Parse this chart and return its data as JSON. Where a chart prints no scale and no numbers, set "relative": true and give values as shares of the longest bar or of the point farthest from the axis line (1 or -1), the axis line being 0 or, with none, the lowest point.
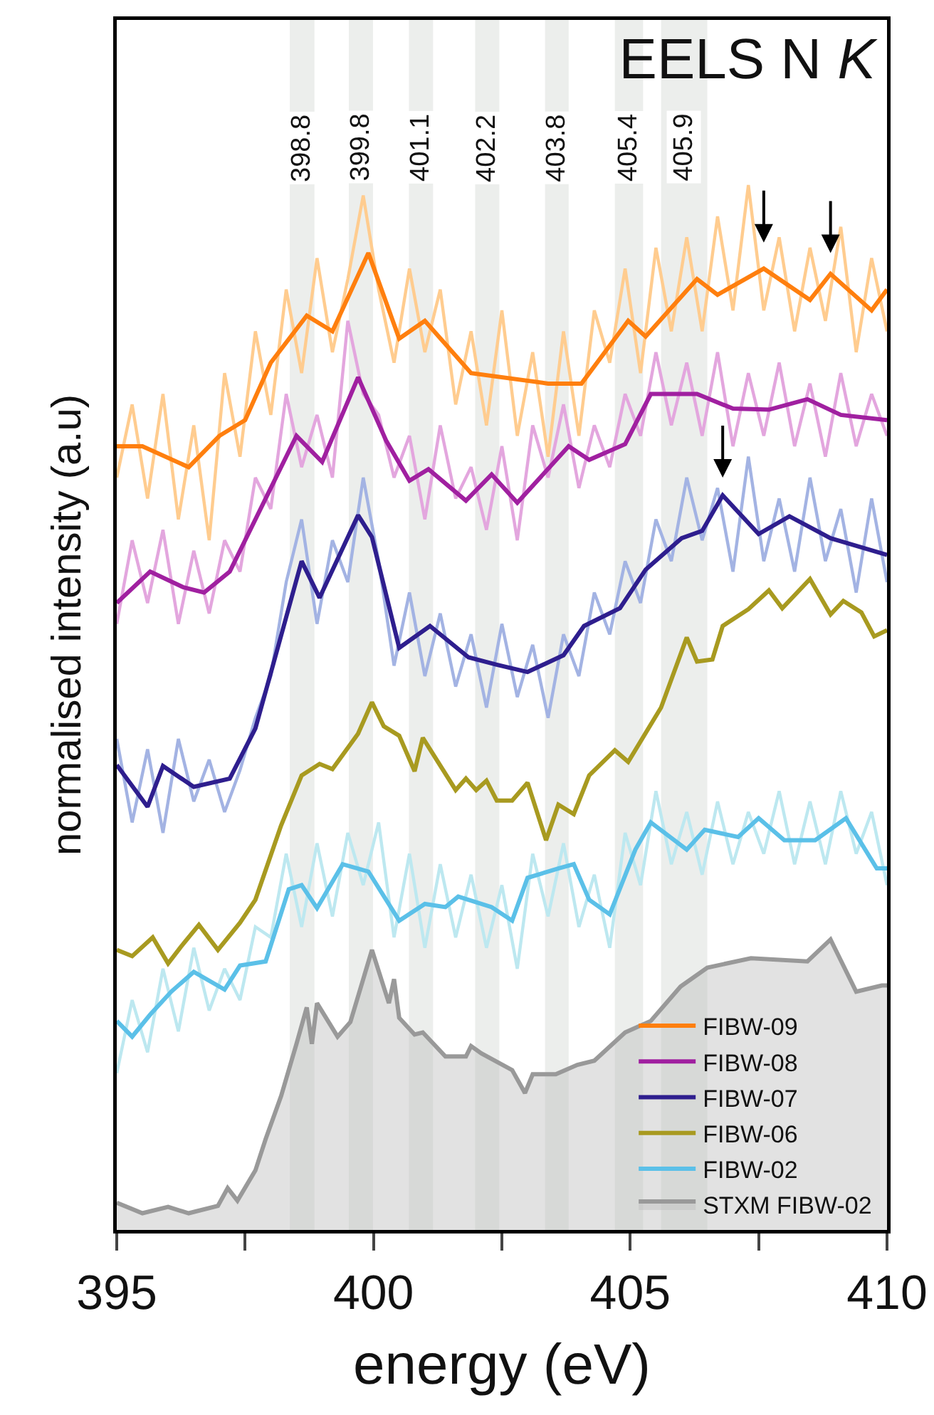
{
  "chart_data": {
    "type": "line",
    "title": "EELS N K",
    "xlabel": "energy (eV)",
    "ylabel": "normalised intensity (a.u)",
    "relative": true,
    "xlim": [
      395,
      410
    ],
    "xticks": [
      395,
      {
        "value": 397.5,
        "label": null
      },
      400,
      {
        "value": 402.5,
        "label": null
      },
      405,
      {
        "value": 407.5,
        "label": null
      },
      410
    ],
    "legend": "bottom right",
    "grid": false,
    "marker": "none",
    "line_style": "solid",
    "bands": [
      {
        "axis": "x",
        "from": 398.37,
        "to": 398.85,
        "label": "398.8",
        "color": "#eceeec"
      },
      {
        "axis": "x",
        "from": 399.52,
        "to": 399.99,
        "label": "399.8",
        "color": "#eceeec"
      },
      {
        "axis": "x",
        "from": 400.69,
        "to": 401.16,
        "label": "401.1",
        "color": "#eceeec"
      },
      {
        "axis": "x",
        "from": 401.98,
        "to": 402.45,
        "label": "402.2",
        "color": "#eceeec"
      },
      {
        "axis": "x",
        "from": 403.34,
        "to": 403.8,
        "label": "403.8",
        "color": "#eceeec"
      },
      {
        "axis": "x",
        "from": 404.7,
        "to": 405.25,
        "label": "405.4",
        "color": "#eceeec"
      },
      {
        "axis": "x",
        "from": 405.6,
        "to": 406.5,
        "label": "405.9",
        "color": "#eceeec"
      }
    ],
    "series": [
      {
        "name": "STXM FIBW-02",
        "type": "area",
        "color": "#999999",
        "x": [
          395,
          395.5,
          396,
          396.4,
          396.97,
          397.16,
          397.35,
          397.7,
          397.9,
          398.2,
          398.5,
          398.7,
          398.8,
          398.9,
          399.3,
          399.55,
          399.97,
          400.3,
          400.4,
          400.5,
          400.8,
          400.96,
          401.4,
          401.8,
          401.9,
          402.1,
          402.7,
          402.95,
          403.1,
          403.55,
          403.97,
          404.3,
          404.9,
          405.4,
          405.98,
          406.5,
          407.35,
          408.45,
          408.9,
          409.4,
          409.9,
          410
        ],
        "values": [
          0.026,
          0.016,
          0.022,
          0.016,
          0.023,
          0.04,
          0.028,
          0.057,
          0.087,
          0.128,
          0.178,
          0.213,
          0.178,
          0.217,
          0.185,
          0.199,
          0.268,
          0.217,
          0.24,
          0.203,
          0.187,
          0.189,
          0.166,
          0.166,
          0.176,
          0.169,
          0.153,
          0.131,
          0.149,
          0.149,
          0.158,
          0.162,
          0.189,
          0.2,
          0.233,
          0.251,
          0.26,
          0.257,
          0.278,
          0.228,
          0.234,
          0.234
        ]
      },
      {
        "type": "line",
        "color": "#ffcc8f",
        "x": [
          395.0,
          395.3,
          395.6,
          395.9,
          396.2,
          396.5,
          396.8,
          397.1,
          397.4,
          397.7,
          398.0,
          398.3,
          398.6,
          398.9,
          399.2,
          399.5,
          399.8,
          400.1,
          400.4,
          400.7,
          401.0,
          401.3,
          401.6,
          401.9,
          402.2,
          402.5,
          402.8,
          403.1,
          403.4,
          403.7,
          404.0,
          404.3,
          404.6,
          404.9,
          405.2,
          405.5,
          405.8,
          406.1,
          406.4,
          406.7,
          407.0,
          407.3,
          407.6,
          407.9,
          408.2,
          408.5,
          408.8,
          409.1,
          409.4,
          409.7,
          410.0
        ],
        "values": [
          0.72,
          0.79,
          0.7,
          0.8,
          0.68,
          0.77,
          0.66,
          0.82,
          0.74,
          0.86,
          0.78,
          0.9,
          0.82,
          0.93,
          0.84,
          0.91,
          0.99,
          0.9,
          0.83,
          0.92,
          0.84,
          0.9,
          0.79,
          0.86,
          0.77,
          0.88,
          0.76,
          0.84,
          0.74,
          0.86,
          0.76,
          0.88,
          0.83,
          0.92,
          0.82,
          0.94,
          0.86,
          0.95,
          0.86,
          0.97,
          0.88,
          1.0,
          0.88,
          0.95,
          0.86,
          0.94,
          0.87,
          0.96,
          0.84,
          0.93,
          0.86
        ]
      },
      {
        "type": "line",
        "color": "#e3a6de",
        "x": [
          395.0,
          395.3,
          395.6,
          395.9,
          396.2,
          396.5,
          396.8,
          397.1,
          397.4,
          397.7,
          398.0,
          398.3,
          398.6,
          398.9,
          399.2,
          399.5,
          399.8,
          400.1,
          400.4,
          400.7,
          401.0,
          401.3,
          401.6,
          401.9,
          402.2,
          402.5,
          402.8,
          403.1,
          403.4,
          403.7,
          404.0,
          404.3,
          404.6,
          404.9,
          405.2,
          405.5,
          405.8,
          406.1,
          406.4,
          406.7,
          407.0,
          407.3,
          407.6,
          407.9,
          408.2,
          408.5,
          408.8,
          409.1,
          409.4,
          409.7,
          410.0
        ],
        "values": [
          0.58,
          0.66,
          0.6,
          0.67,
          0.58,
          0.65,
          0.59,
          0.66,
          0.63,
          0.72,
          0.69,
          0.8,
          0.73,
          0.78,
          0.72,
          0.87,
          0.8,
          0.78,
          0.72,
          0.76,
          0.68,
          0.77,
          0.7,
          0.73,
          0.67,
          0.75,
          0.66,
          0.77,
          0.72,
          0.79,
          0.71,
          0.77,
          0.73,
          0.8,
          0.76,
          0.84,
          0.77,
          0.83,
          0.76,
          0.84,
          0.75,
          0.82,
          0.76,
          0.83,
          0.75,
          0.81,
          0.74,
          0.82,
          0.75,
          0.8,
          0.76
        ]
      },
      {
        "type": "line",
        "color": "#a3b3e3",
        "x": [
          395.0,
          395.3,
          395.6,
          395.9,
          396.2,
          396.5,
          396.8,
          397.1,
          397.4,
          397.7,
          398.0,
          398.3,
          398.6,
          398.9,
          399.2,
          399.5,
          399.8,
          400.1,
          400.4,
          400.7,
          401.0,
          401.3,
          401.6,
          401.9,
          402.2,
          402.5,
          402.8,
          403.1,
          403.4,
          403.7,
          404.0,
          404.3,
          404.6,
          404.9,
          405.2,
          405.5,
          405.8,
          406.1,
          406.4,
          406.7,
          407.0,
          407.3,
          407.6,
          407.9,
          408.2,
          408.5,
          408.8,
          409.1,
          409.4,
          409.7,
          410.0
        ],
        "values": [
          0.47,
          0.39,
          0.46,
          0.38,
          0.47,
          0.41,
          0.45,
          0.4,
          0.44,
          0.49,
          0.53,
          0.62,
          0.68,
          0.58,
          0.66,
          0.62,
          0.72,
          0.64,
          0.54,
          0.61,
          0.53,
          0.59,
          0.52,
          0.57,
          0.5,
          0.58,
          0.51,
          0.56,
          0.49,
          0.57,
          0.53,
          0.61,
          0.57,
          0.64,
          0.6,
          0.68,
          0.64,
          0.72,
          0.66,
          0.71,
          0.63,
          0.74,
          0.64,
          0.7,
          0.63,
          0.72,
          0.64,
          0.69,
          0.61,
          0.7,
          0.62
        ]
      },
      {
        "type": "line",
        "color": "#bde8f0",
        "x": [
          395.0,
          395.3,
          395.6,
          395.9,
          396.2,
          396.5,
          396.8,
          397.1,
          397.4,
          397.7,
          398.0,
          398.3,
          398.6,
          398.9,
          399.2,
          399.5,
          399.8,
          400.1,
          400.4,
          400.7,
          401.0,
          401.3,
          401.6,
          401.9,
          402.2,
          402.5,
          402.8,
          403.1,
          403.4,
          403.7,
          404.0,
          404.3,
          404.6,
          404.9,
          405.2,
          405.5,
          405.8,
          406.1,
          406.4,
          406.7,
          407.0,
          407.3,
          407.6,
          407.9,
          408.2,
          408.5,
          408.8,
          409.1,
          409.4,
          409.7,
          410.0
        ],
        "values": [
          0.15,
          0.22,
          0.17,
          0.25,
          0.19,
          0.27,
          0.21,
          0.25,
          0.22,
          0.29,
          0.28,
          0.36,
          0.29,
          0.37,
          0.3,
          0.38,
          0.33,
          0.39,
          0.28,
          0.36,
          0.27,
          0.35,
          0.28,
          0.34,
          0.27,
          0.33,
          0.25,
          0.36,
          0.3,
          0.37,
          0.29,
          0.34,
          0.27,
          0.38,
          0.33,
          0.42,
          0.35,
          0.4,
          0.34,
          0.41,
          0.35,
          0.4,
          0.36,
          0.42,
          0.35,
          0.41,
          0.35,
          0.42,
          0.36,
          0.4,
          0.33
        ]
      },
      {
        "name": "FIBW-02",
        "color": "#5bc0e8",
        "x": [
          395,
          395.3,
          395.65,
          396.06,
          396.5,
          397.1,
          397.4,
          397.9,
          398.35,
          398.6,
          398.9,
          399.4,
          399.9,
          400.5,
          401.0,
          401.4,
          401.65,
          402.3,
          402.7,
          403.0,
          403.6,
          403.9,
          404.2,
          404.6,
          405.1,
          405.4,
          406.1,
          406.45,
          407.1,
          407.5,
          408.0,
          408.6,
          409.2,
          409.8,
          410
        ],
        "values": [
          0.2,
          0.185,
          0.206,
          0.228,
          0.247,
          0.23,
          0.253,
          0.257,
          0.326,
          0.33,
          0.308,
          0.35,
          0.343,
          0.296,
          0.312,
          0.309,
          0.319,
          0.309,
          0.296,
          0.337,
          0.346,
          0.35,
          0.316,
          0.302,
          0.364,
          0.39,
          0.364,
          0.383,
          0.376,
          0.394,
          0.373,
          0.373,
          0.394,
          0.346,
          0.346
        ]
      },
      {
        "name": "FIBW-06",
        "color": "#a89a20",
        "x": [
          395,
          395.3,
          395.7,
          396.0,
          396.25,
          396.6,
          396.97,
          397.4,
          397.7,
          398.2,
          398.6,
          398.95,
          399.2,
          399.7,
          399.97,
          400.2,
          400.5,
          400.8,
          400.96,
          401.6,
          401.8,
          402.0,
          402.2,
          402.4,
          402.7,
          403.0,
          403.36,
          403.6,
          403.9,
          404.2,
          404.7,
          404.96,
          405.6,
          406.1,
          406.3,
          406.6,
          406.8,
          407.3,
          407.7,
          407.96,
          408.5,
          408.9,
          409.15,
          409.5,
          409.75,
          410
        ],
        "values": [
          0.268,
          0.262,
          0.28,
          0.255,
          0.271,
          0.292,
          0.268,
          0.294,
          0.316,
          0.387,
          0.435,
          0.446,
          0.441,
          0.475,
          0.505,
          0.482,
          0.473,
          0.439,
          0.471,
          0.421,
          0.432,
          0.421,
          0.43,
          0.411,
          0.411,
          0.428,
          0.373,
          0.407,
          0.398,
          0.435,
          0.459,
          0.448,
          0.5,
          0.567,
          0.544,
          0.546,
          0.578,
          0.594,
          0.612,
          0.595,
          0.623,
          0.589,
          0.602,
          0.591,
          0.568,
          0.574
        ]
      },
      {
        "name": "FIBW-07",
        "color": "#2e1e8e",
        "x": [
          395,
          395.6,
          395.9,
          396.5,
          397.2,
          397.7,
          398.0,
          398.6,
          398.95,
          399.7,
          399.97,
          400.5,
          401.1,
          401.85,
          402.4,
          403.0,
          403.7,
          404.1,
          404.8,
          405.3,
          406.0,
          406.4,
          406.8,
          407.5,
          408.1,
          408.9,
          410
        ],
        "values": [
          0.445,
          0.405,
          0.444,
          0.424,
          0.432,
          0.48,
          0.533,
          0.64,
          0.605,
          0.684,
          0.663,
          0.557,
          0.578,
          0.548,
          0.541,
          0.534,
          0.55,
          0.578,
          0.595,
          0.632,
          0.662,
          0.669,
          0.703,
          0.666,
          0.683,
          0.662,
          0.646
        ]
      },
      {
        "name": "FIBW-08",
        "color": "#a020a0",
        "x": [
          395,
          395.65,
          396.3,
          396.7,
          397.2,
          397.9,
          398.5,
          399.0,
          399.7,
          400.25,
          400.7,
          401.07,
          401.8,
          402.3,
          402.8,
          403.8,
          404.2,
          404.9,
          405.4,
          406.3,
          407.0,
          407.7,
          408.45,
          409.1,
          410
        ],
        "values": [
          0.6,
          0.63,
          0.615,
          0.61,
          0.63,
          0.7,
          0.76,
          0.735,
          0.816,
          0.755,
          0.717,
          0.728,
          0.698,
          0.723,
          0.696,
          0.75,
          0.737,
          0.752,
          0.8,
          0.8,
          0.786,
          0.785,
          0.795,
          0.78,
          0.775
        ]
      },
      {
        "name": "FIBW-09",
        "color": "#ff7f0e",
        "x": [
          395,
          395.5,
          396.4,
          397,
          397.5,
          398.0,
          398.7,
          399.2,
          399.9,
          400.5,
          401.0,
          401.9,
          403.4,
          404.05,
          404.96,
          405.3,
          406.3,
          406.7,
          407.6,
          408.5,
          408.9,
          409.7,
          410
        ],
        "values": [
          0.75,
          0.75,
          0.73,
          0.76,
          0.775,
          0.83,
          0.875,
          0.86,
          0.935,
          0.853,
          0.87,
          0.82,
          0.81,
          0.81,
          0.87,
          0.855,
          0.91,
          0.895,
          0.92,
          0.89,
          0.915,
          0.88,
          0.9
        ]
      }
    ]
  }
}
